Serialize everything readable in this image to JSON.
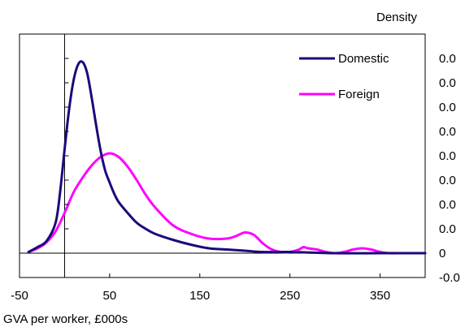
{
  "chart_data": {
    "type": "line",
    "xlabel": "GVA per worker, £000s",
    "ylabel": "Density",
    "xlim": [
      -50,
      400
    ],
    "ylim": [
      -0.002,
      0.018
    ],
    "x_ticks": [
      -50,
      50,
      150,
      250,
      350
    ],
    "x_tick_labels": [
      "-50",
      "50",
      "150",
      "250",
      "350"
    ],
    "y_ticks": [
      0.016,
      0.014,
      0.012,
      0.01,
      0.008,
      0.006,
      0.004,
      0.002,
      0,
      -0.002
    ],
    "y_tick_labels": [
      "0.0",
      "0.0",
      "0.0",
      "0.0",
      "0.0",
      "0.0",
      "0.0",
      "0.0",
      "0",
      "-0.0"
    ],
    "grid": false,
    "legend_position": "top-right",
    "series": [
      {
        "name": "Domestic",
        "color": "#1a0a7a",
        "x": [
          -40,
          -30,
          -20,
          -10,
          -5,
          0,
          5,
          10,
          15,
          20,
          25,
          30,
          35,
          40,
          45,
          50,
          55,
          60,
          70,
          80,
          90,
          100,
          120,
          140,
          160,
          180,
          200,
          220,
          250,
          300,
          350,
          400
        ],
        "y": [
          0.0001,
          0.0005,
          0.001,
          0.0025,
          0.005,
          0.0085,
          0.0118,
          0.0142,
          0.0155,
          0.0157,
          0.0148,
          0.0128,
          0.0105,
          0.0084,
          0.0068,
          0.0058,
          0.0049,
          0.0042,
          0.0033,
          0.0025,
          0.002,
          0.0016,
          0.0011,
          0.0007,
          0.0004,
          0.0003,
          0.0002,
          0.0001,
          0.0001,
          0.0,
          0.0,
          0.0
        ]
      },
      {
        "name": "Foreign",
        "color": "#ff00ff",
        "x": [
          -40,
          -30,
          -20,
          -10,
          0,
          10,
          20,
          30,
          40,
          50,
          60,
          70,
          80,
          90,
          100,
          120,
          140,
          160,
          180,
          190,
          200,
          210,
          220,
          230,
          240,
          250,
          260,
          265,
          270,
          280,
          290,
          300,
          310,
          320,
          330,
          340,
          350,
          360,
          370,
          400
        ],
        "y": [
          0.0001,
          0.0004,
          0.0009,
          0.0018,
          0.0033,
          0.005,
          0.0062,
          0.0072,
          0.0079,
          0.0082,
          0.0079,
          0.0071,
          0.006,
          0.0048,
          0.0038,
          0.0023,
          0.0016,
          0.0012,
          0.0012,
          0.0014,
          0.0017,
          0.0015,
          0.0008,
          0.0003,
          0.0001,
          0.0001,
          0.0003,
          0.0005,
          0.0004,
          0.0003,
          0.0001,
          0.0,
          0.0001,
          0.0003,
          0.0004,
          0.0003,
          0.0001,
          0.0,
          0.0,
          0.0
        ]
      }
    ]
  }
}
